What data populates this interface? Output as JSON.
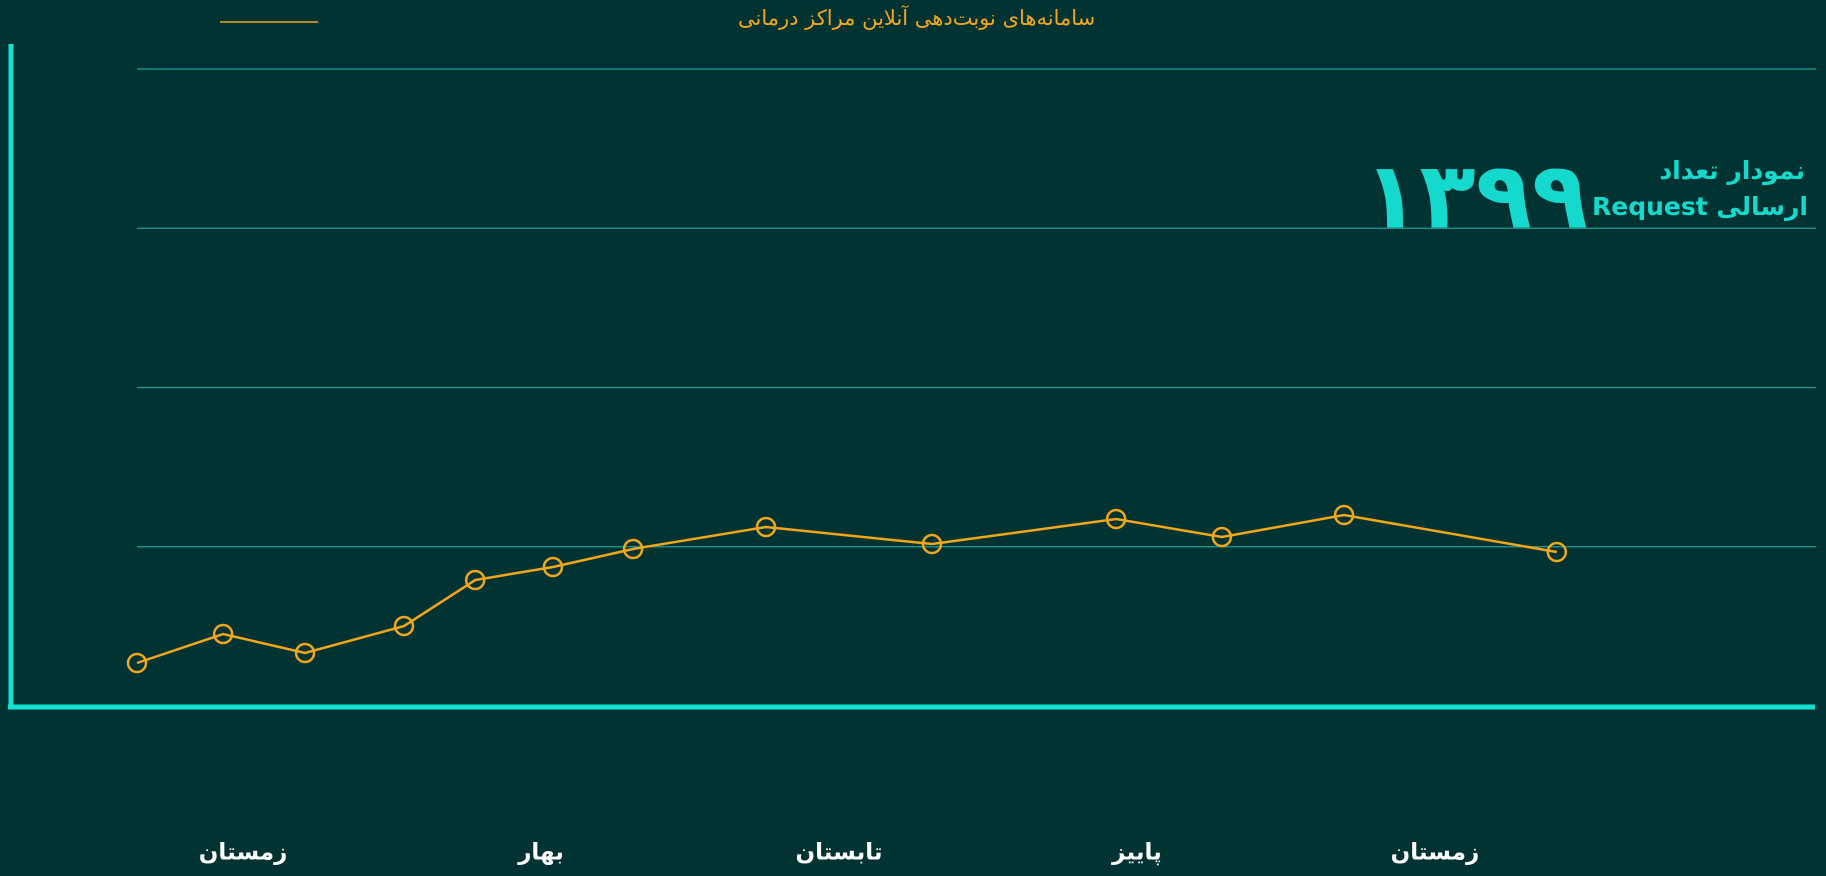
{
  "chart_data": {
    "type": "line",
    "title_lines": [
      "نمودار تعداد",
      "Request ارسالی"
    ],
    "year": "۱۳۹۹",
    "series": [
      {
        "name": "سامانه‌های نوبت‌دهی آنلاین مراکز درمانی",
        "color": "#f2a71b",
        "x": [
          -0.356,
          -0.067,
          0.208,
          0.54,
          0.779,
          1.04,
          1.309,
          1.755,
          2.312,
          2.93,
          3.285,
          3.695,
          4.409
        ],
        "values": [
          0.27,
          0.452,
          0.333,
          0.502,
          0.791,
          0.873,
          0.986,
          1.124,
          1.017,
          1.174,
          1.061,
          1.199,
          0.967
        ]
      }
    ],
    "xlim": [
      -0.356,
      4.413
    ],
    "xticks": [
      {
        "value": 0,
        "label": "زمستان"
      },
      {
        "value": 1,
        "label": "بهار"
      },
      {
        "value": 2,
        "label": "تابستان"
      },
      {
        "value": 3,
        "label": "پاییز"
      },
      {
        "value": 4,
        "label": "زمستان"
      }
    ],
    "ylim": [
      0,
      4
    ],
    "yticks": [
      1,
      2,
      3,
      4
    ],
    "grid": true
  }
}
